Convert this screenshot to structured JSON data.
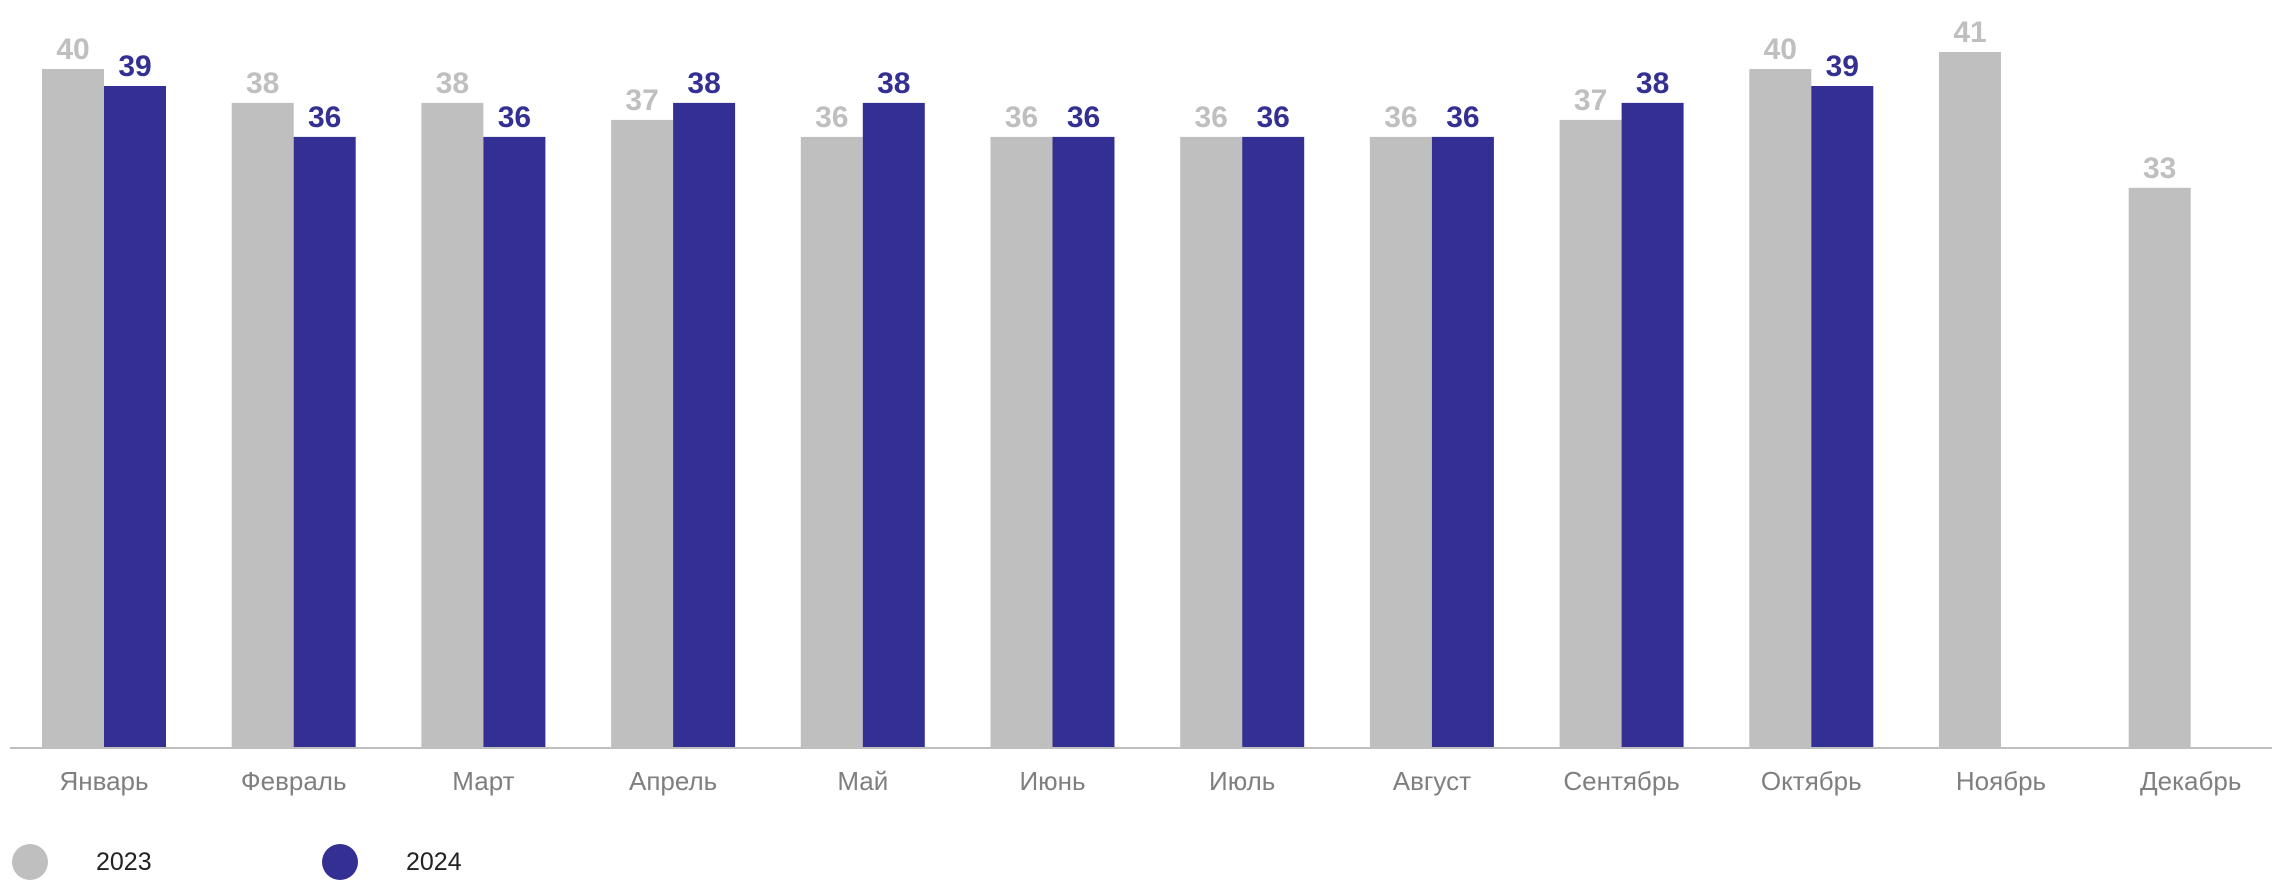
{
  "chart_data": {
    "type": "bar",
    "categories": [
      "Январь",
      "Февраль",
      "Март",
      "Апрель",
      "Май",
      "Июнь",
      "Июль",
      "Август",
      "Сентябрь",
      "Октябрь",
      "Ноябрь",
      "Декабрь"
    ],
    "series": [
      {
        "name": "2023",
        "color": "#bfbfbf",
        "values": [
          40,
          38,
          38,
          37,
          36,
          36,
          36,
          36,
          37,
          40,
          41,
          33
        ]
      },
      {
        "name": "2024",
        "color": "#343093",
        "values": [
          39,
          36,
          36,
          38,
          38,
          36,
          36,
          36,
          38,
          39,
          null,
          null
        ]
      }
    ],
    "ylim": [
      0,
      41
    ],
    "grid": false,
    "legend": "bottom-left"
  }
}
